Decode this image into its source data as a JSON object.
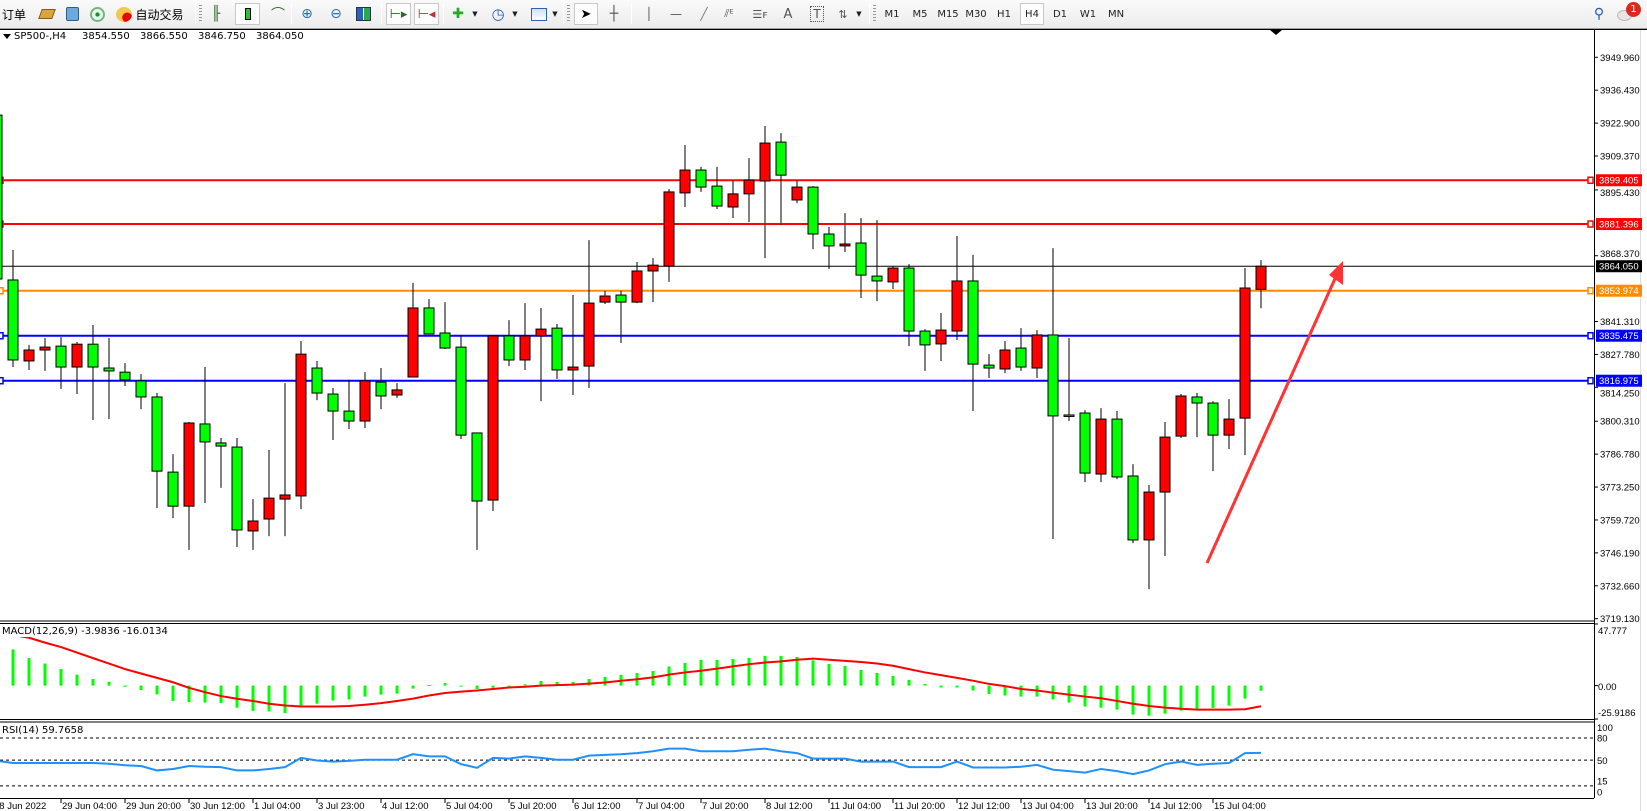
{
  "toolbar": {
    "orders_label": "订单",
    "autotrade_label": "自动交易",
    "timeframes": [
      "M1",
      "M5",
      "M15",
      "M30",
      "H1",
      "H4",
      "D1",
      "W1",
      "MN"
    ],
    "active_timeframe": "H4",
    "notification_count": "1"
  },
  "header": {
    "symbol": "SP500-,H4",
    "open": "3854.550",
    "high": "3866.550",
    "low": "3846.750",
    "close": "3864.050"
  },
  "colors": {
    "bull_candle": "#ff0000",
    "bear_candle": "#00ff00",
    "resistance_line": "#ff0000",
    "pivot_line": "#ff8c00",
    "support_line": "#0000ff",
    "rsi_line": "#1e90ff",
    "macd_histogram": "#00ff00",
    "macd_signal": "#ff0000",
    "arrow": "#ff3333"
  },
  "chart_data": {
    "type": "candlestick",
    "symbol": "SP500-",
    "timeframe": "H4",
    "ylim": [
      3719.13,
      3956
    ],
    "price_axis": [
      "3949.960",
      "3936.430",
      "3922.900",
      "3909.370",
      "3895.430",
      "3868.370",
      "3841.310",
      "3827.780",
      "3814.250",
      "3800.310",
      "3786.780",
      "3773.250",
      "3759.720",
      "3746.190",
      "3732.660",
      "3719.130"
    ],
    "time_axis": [
      "28 Jun 2022",
      "29 Jun 04:00",
      "29 Jun 20:00",
      "30 Jun 12:00",
      "1 Jul 04:00",
      "3 Jul 23:00",
      "4 Jul 12:00",
      "5 Jul 04:00",
      "5 Jul 20:00",
      "6 Jul 12:00",
      "7 Jul 04:00",
      "7 Jul 20:00",
      "8 Jul 12:00",
      "11 Jul 04:00",
      "11 Jul 20:00",
      "12 Jul 12:00",
      "13 Jul 04:00",
      "13 Jul 20:00",
      "14 Jul 12:00",
      "15 Jul 04:00"
    ],
    "ohlc": [
      [
        3926.2,
        3928.3,
        3858.4,
        3858.8
      ],
      [
        3858.4,
        3870.7,
        3822.6,
        3825.5
      ],
      [
        3825.1,
        3831.7,
        3821.4,
        3829.6
      ],
      [
        3829.6,
        3834.5,
        3821.0,
        3830.8
      ],
      [
        3831.2,
        3834.9,
        3813.6,
        3822.6
      ],
      [
        3822.6,
        3832.9,
        3811.5,
        3832.0
      ],
      [
        3832.0,
        3839.9,
        3800.8,
        3822.6
      ],
      [
        3822.2,
        3834.5,
        3801.2,
        3821.0
      ],
      [
        3820.5,
        3824.2,
        3814.8,
        3817.3
      ],
      [
        3816.9,
        3819.7,
        3805.3,
        3810.3
      ],
      [
        3810.3,
        3811.9,
        3764.6,
        3779.8
      ],
      [
        3779.4,
        3786.8,
        3760.5,
        3765.4
      ],
      [
        3765.4,
        3800.0,
        3747.4,
        3799.6
      ],
      [
        3799.2,
        3822.6,
        3766.7,
        3791.8
      ],
      [
        3791.4,
        3793.4,
        3772.9,
        3790.1
      ],
      [
        3789.7,
        3793.4,
        3748.6,
        3755.6
      ],
      [
        3755.2,
        3768.3,
        3747.4,
        3759.3
      ],
      [
        3760.1,
        3788.5,
        3753.1,
        3768.7
      ],
      [
        3768.3,
        3816.0,
        3753.1,
        3770.0
      ],
      [
        3769.6,
        3833.3,
        3764.2,
        3827.9
      ],
      [
        3822.2,
        3825.1,
        3809.0,
        3811.9
      ],
      [
        3811.5,
        3814.0,
        3792.6,
        3804.5
      ],
      [
        3804.5,
        3817.3,
        3797.1,
        3800.4
      ],
      [
        3800.4,
        3820.5,
        3797.5,
        3816.9
      ],
      [
        3816.4,
        3822.2,
        3805.3,
        3810.7
      ],
      [
        3811.1,
        3816.0,
        3809.9,
        3813.2
      ],
      [
        3818.5,
        3857.2,
        3818.5,
        3846.9
      ],
      [
        3846.9,
        3850.5,
        3836.2,
        3836.2
      ],
      [
        3836.6,
        3849.3,
        3830.0,
        3830.4
      ],
      [
        3830.8,
        3835.8,
        3793.0,
        3794.6
      ],
      [
        3795.5,
        3795.5,
        3747.4,
        3767.5
      ],
      [
        3767.9,
        3835.4,
        3763.4,
        3835.4
      ],
      [
        3835.4,
        3841.9,
        3823.0,
        3825.5
      ],
      [
        3825.5,
        3848.9,
        3821.4,
        3835.4
      ],
      [
        3835.4,
        3846.9,
        3808.6,
        3838.2
      ],
      [
        3838.6,
        3840.3,
        3817.7,
        3821.4
      ],
      [
        3821.4,
        3852.2,
        3811.1,
        3822.6
      ],
      [
        3823.0,
        3874.8,
        3814.0,
        3848.9
      ],
      [
        3849.3,
        3853.9,
        3848.5,
        3851.8
      ],
      [
        3852.2,
        3853.9,
        3832.5,
        3849.3
      ],
      [
        3849.3,
        3865.8,
        3848.9,
        3862.1
      ],
      [
        3862.1,
        3867.4,
        3849.3,
        3864.5
      ],
      [
        3864.1,
        3895.8,
        3857.6,
        3894.6
      ],
      [
        3894.2,
        3913.9,
        3888.4,
        3903.6
      ],
      [
        3903.6,
        3904.9,
        3894.6,
        3896.6
      ],
      [
        3897.0,
        3904.9,
        3887.6,
        3888.8
      ],
      [
        3888.4,
        3899.5,
        3883.9,
        3893.8
      ],
      [
        3893.8,
        3908.5,
        3882.2,
        3899.5
      ],
      [
        3899.1,
        3921.7,
        3867.4,
        3914.7
      ],
      [
        3915.1,
        3918.8,
        3881.0,
        3901.5
      ],
      [
        3891.3,
        3899.5,
        3890.0,
        3896.6
      ],
      [
        3896.6,
        3897.0,
        3871.1,
        3877.3
      ],
      [
        3877.3,
        3880.2,
        3862.9,
        3872.4
      ],
      [
        3872.4,
        3885.9,
        3869.9,
        3873.2
      ],
      [
        3873.6,
        3883.9,
        3851.0,
        3860.4
      ],
      [
        3860.0,
        3883.0,
        3849.7,
        3858.0
      ],
      [
        3857.6,
        3864.1,
        3854.7,
        3863.3
      ],
      [
        3863.3,
        3864.9,
        3831.2,
        3837.4
      ],
      [
        3837.4,
        3838.2,
        3821.0,
        3831.7
      ],
      [
        3832.1,
        3844.8,
        3825.1,
        3837.8
      ],
      [
        3837.4,
        3876.5,
        3833.7,
        3858.0
      ],
      [
        3858.0,
        3868.7,
        3804.5,
        3823.8
      ],
      [
        3823.4,
        3827.9,
        3818.1,
        3822.2
      ],
      [
        3821.8,
        3833.3,
        3820.1,
        3829.6
      ],
      [
        3830.4,
        3838.6,
        3821.0,
        3822.6
      ],
      [
        3822.2,
        3837.8,
        3818.1,
        3835.8
      ],
      [
        3835.8,
        3871.5,
        3751.9,
        3802.5
      ],
      [
        3802.9,
        3834.5,
        3800.4,
        3802.9
      ],
      [
        3803.7,
        3804.9,
        3775.3,
        3779.0
      ],
      [
        3778.6,
        3805.7,
        3775.3,
        3801.2
      ],
      [
        3801.2,
        3804.5,
        3776.5,
        3777.4
      ],
      [
        3777.8,
        3782.7,
        3750.2,
        3751.5
      ],
      [
        3751.5,
        3774.1,
        3731.3,
        3771.2
      ],
      [
        3771.2,
        3800.0,
        3744.9,
        3793.8
      ],
      [
        3794.2,
        3811.5,
        3793.4,
        3810.7
      ],
      [
        3810.3,
        3811.9,
        3793.8,
        3807.8
      ],
      [
        3807.8,
        3808.6,
        3779.8,
        3794.6
      ],
      [
        3794.6,
        3809.4,
        3788.9,
        3801.2
      ],
      [
        3801.6,
        3863.3,
        3786.4,
        3855.1
      ],
      [
        3854.55,
        3866.55,
        3846.75,
        3864.05
      ]
    ],
    "hlines": [
      {
        "price": "3899.405",
        "color": "#ff0000"
      },
      {
        "price": "3881.396",
        "color": "#ff0000"
      },
      {
        "price": "3853.974",
        "color": "#ff8c00"
      },
      {
        "price": "3835.475",
        "color": "#0000ff"
      },
      {
        "price": "3816.975",
        "color": "#0000ff"
      }
    ],
    "bid_line": {
      "price": "3864.050",
      "color": "#000000"
    },
    "macd": {
      "label": "MACD(12,26,9) -3.9836 -16.0134",
      "axis": [
        "47.777",
        "0.00",
        "-25.9186"
      ],
      "ylim": [
        -25.9186,
        47.777
      ],
      "histogram": [
        30.7,
        28.1,
        21.3,
        17.1,
        12.8,
        8.5,
        5.1,
        3.0,
        -0.9,
        -3.4,
        -6.8,
        -11.9,
        -12.8,
        -13.2,
        -13.6,
        -17.1,
        -19.6,
        -20.0,
        -21.3,
        -15.4,
        -14.0,
        -11.6,
        -10.8,
        -8.5,
        -7.0,
        -6.2,
        -2.3,
        0.5,
        2.0,
        -0.5,
        -2.6,
        -1.7,
        -0.5,
        1.0,
        3.6,
        2.8,
        2.8,
        5.1,
        6.7,
        8.3,
        9.8,
        11.3,
        14.8,
        17.6,
        19.9,
        19.9,
        20.6,
        21.5,
        23.0,
        23.0,
        22.2,
        19.6,
        16.8,
        15.3,
        12.1,
        9.8,
        7.5,
        4.4,
        1.3,
        -1.5,
        -1.5,
        -3.8,
        -6.5,
        -7.7,
        -8.5,
        -8.5,
        -10.8,
        -13.2,
        -16.2,
        -17.1,
        -18.6,
        -22.5,
        -23.3,
        -21.8,
        -19.4,
        -17.9,
        -17.3,
        -15.5,
        -10.1,
        -3.9836
      ],
      "signal": [
        41.8,
        39.2,
        37.1,
        33.3,
        29.9,
        25.6,
        21.3,
        17.1,
        12.8,
        9.4,
        6.0,
        2.6,
        -1.7,
        -5.1,
        -8.1,
        -10.2,
        -11.9,
        -14.1,
        -15.4,
        -16.2,
        -16.2,
        -16.2,
        -15.8,
        -14.8,
        -13.6,
        -11.9,
        -10.1,
        -7.7,
        -5.7,
        -4.7,
        -3.8,
        -2.6,
        -1.5,
        -0.9,
        0,
        0.4,
        0.8,
        1.5,
        2.4,
        3.8,
        4.9,
        6.4,
        8.5,
        10.2,
        11.5,
        13.2,
        14.9,
        16.6,
        17.9,
        18.8,
        20.0,
        20.9,
        20.0,
        19.2,
        18.3,
        17.1,
        15.4,
        12.8,
        10.2,
        8.1,
        6.0,
        3.8,
        1.3,
        -0.4,
        -2.6,
        -3.8,
        -5.5,
        -7.0,
        -8.5,
        -9.8,
        -11.9,
        -14.1,
        -15.8,
        -17.1,
        -17.9,
        -18.6,
        -18.6,
        -18.6,
        -18.3,
        -16.0134
      ]
    },
    "rsi": {
      "label": "RSI(14) 59.7658",
      "axis": [
        "100",
        "80",
        "50",
        "15",
        "0"
      ],
      "levels": [
        80,
        50,
        15
      ],
      "values": [
        49,
        46,
        46,
        46,
        46,
        46,
        46,
        45,
        43,
        42,
        36,
        38,
        42,
        41,
        40.5,
        36,
        36,
        38,
        40.5,
        53,
        49.5,
        48,
        49,
        50.5,
        50.5,
        50.5,
        58,
        55,
        55,
        44.5,
        39.5,
        53,
        52,
        55,
        53,
        50.5,
        50.5,
        56,
        57,
        58,
        59.5,
        62,
        65.5,
        65.5,
        62,
        62,
        62,
        64,
        65.5,
        62,
        59.5,
        52,
        52,
        52,
        48,
        48,
        48,
        40.5,
        40.5,
        40.5,
        48,
        40,
        40,
        40,
        41,
        43.5,
        37,
        35,
        33,
        38,
        35,
        31,
        36,
        44.5,
        48,
        43.5,
        45,
        46,
        59.5,
        59.7658
      ]
    }
  }
}
